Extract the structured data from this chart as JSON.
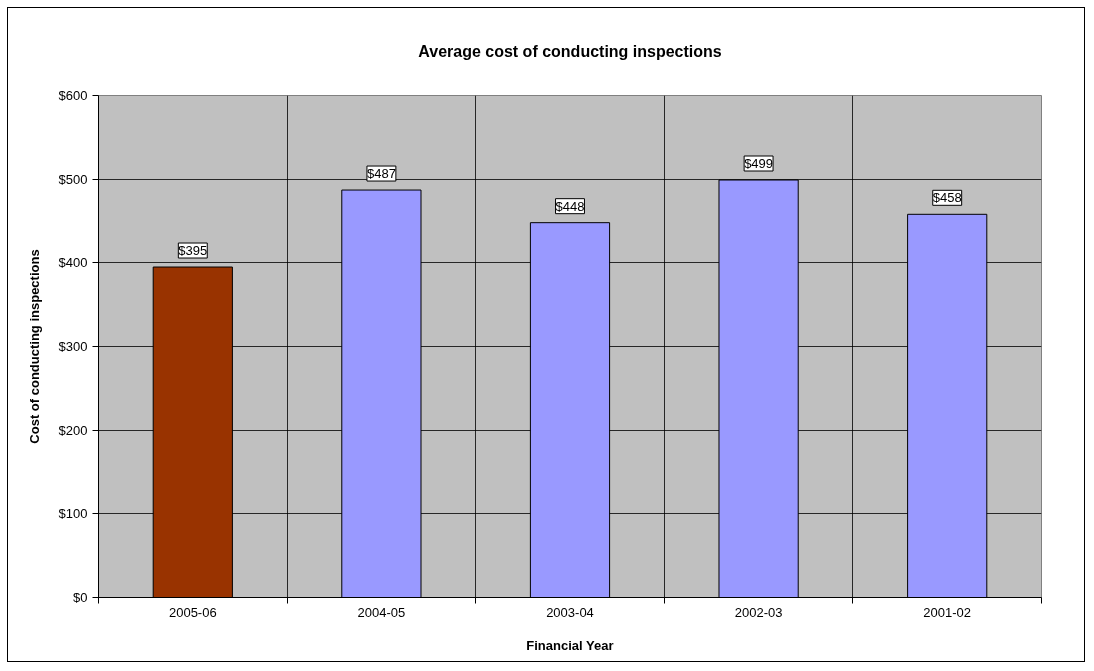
{
  "chart_data": {
    "type": "bar",
    "title": "Average cost of conducting inspections",
    "xlabel": "Financial Year",
    "ylabel": "Cost of conducting inspections",
    "categories": [
      "2005-06",
      "2004-05",
      "2003-04",
      "2002-03",
      "2001-02"
    ],
    "values": [
      395,
      487,
      448,
      499,
      458
    ],
    "colors": [
      "#993300",
      "#9999ff",
      "#9999ff",
      "#9999ff",
      "#9999ff"
    ],
    "value_labels": [
      "$395",
      "$487",
      "$448",
      "$499",
      "$458"
    ],
    "ylim": [
      0,
      600
    ],
    "yticks": [
      {
        "value": 0,
        "label": "$0"
      },
      {
        "value": 100,
        "label": "$100"
      },
      {
        "value": 200,
        "label": "$200"
      },
      {
        "value": 300,
        "label": "$300"
      },
      {
        "value": 400,
        "label": "$400"
      },
      {
        "value": 500,
        "label": "$500"
      },
      {
        "value": 600,
        "label": "$600"
      }
    ],
    "grid": true
  }
}
